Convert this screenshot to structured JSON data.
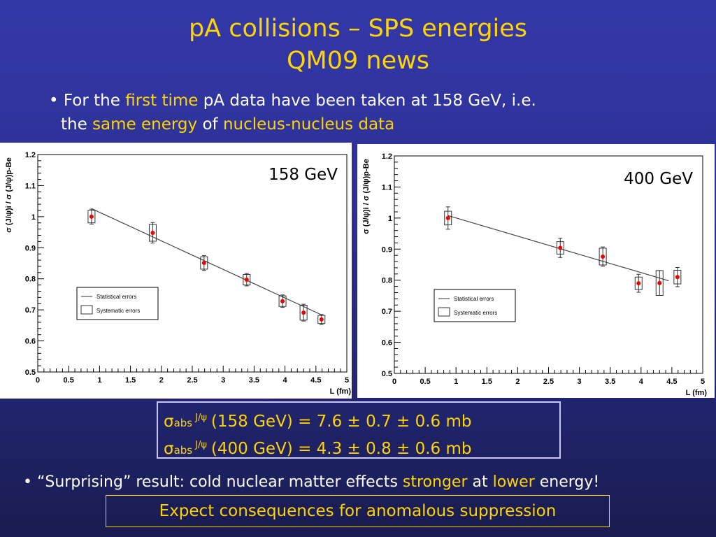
{
  "slide": {
    "title_line1": "pA collisions – SPS energies",
    "title_line2": "QM09 news",
    "bullet1": {
      "marker": "•",
      "t1": "For the ",
      "h1": "first time",
      "t2": " pA data have been taken at 158 GeV, i.e.",
      "t3": "the ",
      "h2": "same energy",
      "t4": " of ",
      "h3": "nucleus-nucleus data"
    },
    "results": {
      "sigma": "σ",
      "sub": "abs",
      "sup": "J/ψ",
      "line1_rest": "(158 GeV) = 7.6 ± 0.7 ± 0.6 mb",
      "line2_rest": "(400 GeV) = 4.3 ± 0.8 ± 0.6 mb"
    },
    "bullet2": {
      "marker": "•",
      "t1": "“Surprising” result: cold nuclear matter effects ",
      "h1": "stronger",
      "t2": " at ",
      "h2": "lower",
      "t3": " energy!"
    },
    "expect_text": "Expect consequences for anomalous suppression"
  },
  "colors": {
    "highlight": "#ffd400",
    "point": "#ee0000",
    "fit_line": "#444444"
  },
  "chart_data": [
    {
      "type": "scatter",
      "energy_label": "158 GeV",
      "ylabel": "σ (J/ψ)i / σ (J/ψ)p-Be",
      "xlabel": "L (fm)",
      "xlim": [
        0,
        5
      ],
      "ylim": [
        0.5,
        1.2
      ],
      "xticks": [
        "0",
        "0.5",
        "1",
        "1.5",
        "2",
        "2.5",
        "3",
        "3.5",
        "4",
        "4.5",
        "5"
      ],
      "yticks": [
        "0.5",
        "0.6",
        "0.7",
        "0.8",
        "0.9",
        "1",
        "1.1",
        "1.2"
      ],
      "legend": [
        "Statistical errors",
        "Systematic errors"
      ],
      "legend_position": "lower-left",
      "points": [
        {
          "x": 0.87,
          "y": 1.0,
          "stat": 0.024,
          "sys": 0.02
        },
        {
          "x": 1.86,
          "y": 0.948,
          "stat": 0.033,
          "sys": 0.027
        },
        {
          "x": 2.69,
          "y": 0.851,
          "stat": 0.024,
          "sys": 0.02
        },
        {
          "x": 3.38,
          "y": 0.797,
          "stat": 0.02,
          "sys": 0.017
        },
        {
          "x": 3.96,
          "y": 0.728,
          "stat": 0.02,
          "sys": 0.017
        },
        {
          "x": 4.3,
          "y": 0.691,
          "stat": 0.027,
          "sys": 0.024
        },
        {
          "x": 4.59,
          "y": 0.669,
          "stat": 0.016,
          "sys": 0.013
        }
      ],
      "fit": {
        "x": [
          0.87,
          4.59
        ],
        "y": [
          1.026,
          0.684
        ]
      }
    },
    {
      "type": "scatter",
      "energy_label": "400 GeV",
      "ylabel": "σ (J/ψ)i / σ (J/ψ)p-Be",
      "xlabel": "L (fm)",
      "xlim": [
        0,
        5
      ],
      "ylim": [
        0.5,
        1.2
      ],
      "xticks": [
        "0",
        "0.5",
        "1",
        "1.5",
        "2",
        "2.5",
        "3",
        "3.5",
        "4",
        "4.5",
        "5"
      ],
      "yticks": [
        "0.5",
        "0.6",
        "0.7",
        "0.8",
        "0.9",
        "1",
        "1.1",
        "1.2"
      ],
      "legend": [
        "Statistical errors",
        "Systematic errors"
      ],
      "legend_position": "lower-left",
      "points": [
        {
          "x": 0.87,
          "y": 1.0,
          "stat": 0.036,
          "sys": 0.022
        },
        {
          "x": 2.69,
          "y": 0.904,
          "stat": 0.031,
          "sys": 0.02
        },
        {
          "x": 3.38,
          "y": 0.876,
          "stat": 0.031,
          "sys": 0.027
        },
        {
          "x": 3.96,
          "y": 0.79,
          "stat": 0.029,
          "sys": 0.02
        },
        {
          "x": 4.3,
          "y": 0.791,
          "stat": 0.04,
          "sys": 0.04
        },
        {
          "x": 4.59,
          "y": 0.81,
          "stat": 0.031,
          "sys": 0.022
        }
      ],
      "fit": {
        "x": [
          0.87,
          4.45
        ],
        "y": [
          1.008,
          0.798
        ]
      }
    }
  ]
}
